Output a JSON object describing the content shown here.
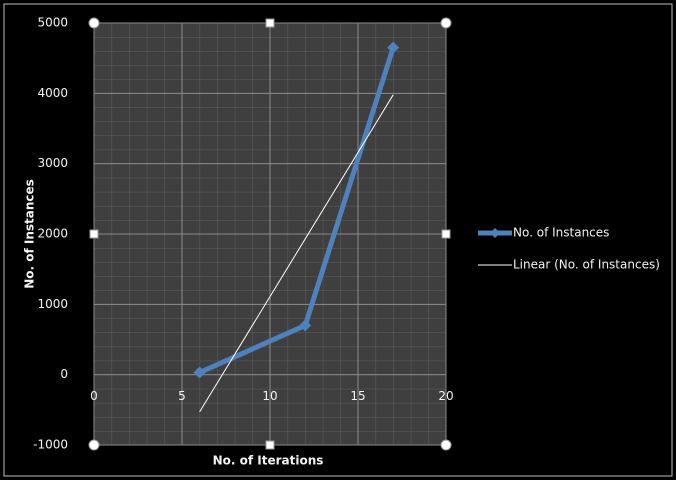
{
  "chart_data": {
    "type": "line",
    "x_label": "No. of Iterations",
    "y_label": "No. of Instances",
    "xlim": [
      0,
      20
    ],
    "xticks": [
      0,
      5,
      10,
      15,
      20
    ],
    "ylim": [
      -1000,
      5000
    ],
    "yticks": [
      -1000,
      0,
      1000,
      2000,
      3000,
      4000,
      5000
    ],
    "grid": true,
    "legend": "right",
    "series": [
      {
        "name": "No. of Instances",
        "color": "#4f81bd",
        "marker": "diamond",
        "line_width": 5,
        "x": [
          6,
          12,
          17
        ],
        "values": [
          30,
          700,
          4650
        ]
      },
      {
        "name": "Linear (No. of Instances)",
        "color": "#ffffff",
        "line_width": 1,
        "x": [
          6,
          17
        ],
        "values": [
          -529,
          3979
        ]
      }
    ]
  }
}
